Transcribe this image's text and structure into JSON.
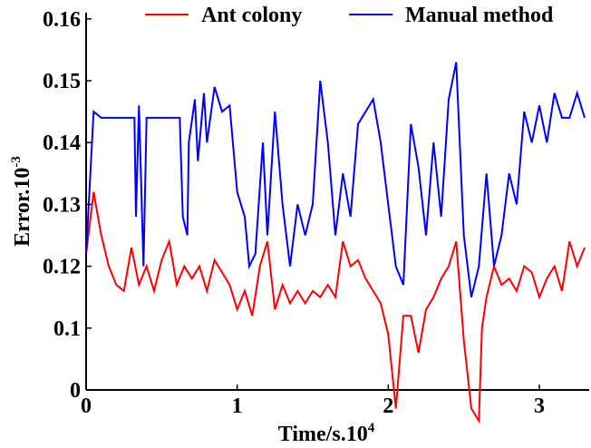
{
  "chart_data": {
    "type": "line",
    "xlabel": {
      "text": "Time/s.10",
      "sup": "4"
    },
    "ylabel": {
      "text": "Error.10",
      "sup": "-3"
    },
    "xlim": [
      0,
      3.33
    ],
    "ylim": [
      0.1,
      0.161
    ],
    "xticks": [
      0,
      1,
      2,
      3
    ],
    "yticks": [
      {
        "value": 0.1,
        "label": "0"
      },
      {
        "value": 0.11,
        "label": "0.1"
      },
      0.12,
      0.13,
      0.14,
      0.15,
      0.16
    ],
    "legend": "top",
    "series": [
      {
        "name": "Ant colony",
        "color": "#ff0000",
        "x": [
          0,
          0.05,
          0.1,
          0.15,
          0.2,
          0.25,
          0.3,
          0.35,
          0.4,
          0.45,
          0.5,
          0.55,
          0.6,
          0.65,
          0.7,
          0.75,
          0.8,
          0.85,
          0.9,
          0.95,
          1.0,
          1.05,
          1.1,
          1.15,
          1.2,
          1.25,
          1.3,
          1.35,
          1.4,
          1.45,
          1.5,
          1.55,
          1.6,
          1.65,
          1.7,
          1.75,
          1.8,
          1.85,
          1.9,
          1.95,
          2.0,
          2.05,
          2.1,
          2.15,
          2.2,
          2.25,
          2.3,
          2.35,
          2.4,
          2.45,
          2.5,
          2.55,
          2.6,
          2.62,
          2.65,
          2.7,
          2.75,
          2.8,
          2.85,
          2.9,
          2.95,
          3.0,
          3.05,
          3.1,
          3.15,
          3.2,
          3.25,
          3.3
        ],
        "values": [
          0.122,
          0.132,
          0.125,
          0.12,
          0.117,
          0.116,
          0.123,
          0.117,
          0.12,
          0.116,
          0.121,
          0.124,
          0.117,
          0.12,
          0.118,
          0.12,
          0.116,
          0.121,
          0.119,
          0.117,
          0.113,
          0.116,
          0.112,
          0.12,
          0.124,
          0.113,
          0.117,
          0.114,
          0.116,
          0.114,
          0.116,
          0.115,
          0.117,
          0.115,
          0.124,
          0.12,
          0.121,
          0.118,
          0.116,
          0.114,
          0.109,
          0.097,
          0.112,
          0.112,
          0.106,
          0.113,
          0.115,
          0.118,
          0.12,
          0.124,
          0.108,
          0.097,
          0.095,
          0.11,
          0.115,
          0.12,
          0.117,
          0.118,
          0.116,
          0.12,
          0.119,
          0.115,
          0.118,
          0.12,
          0.116,
          0.124,
          0.12,
          0.123
        ]
      },
      {
        "name": "Manual method",
        "color": "#0000ff",
        "x": [
          0,
          0.05,
          0.1,
          0.32,
          0.33,
          0.35,
          0.38,
          0.4,
          0.62,
          0.64,
          0.67,
          0.68,
          0.72,
          0.74,
          0.78,
          0.8,
          0.85,
          0.9,
          0.95,
          1.0,
          1.05,
          1.08,
          1.12,
          1.17,
          1.2,
          1.25,
          1.3,
          1.35,
          1.4,
          1.45,
          1.5,
          1.55,
          1.6,
          1.65,
          1.7,
          1.75,
          1.8,
          1.9,
          1.95,
          2.0,
          2.05,
          2.1,
          2.15,
          2.2,
          2.25,
          2.3,
          2.35,
          2.4,
          2.45,
          2.5,
          2.55,
          2.6,
          2.65,
          2.7,
          2.75,
          2.8,
          2.85,
          2.9,
          2.95,
          3.0,
          3.05,
          3.1,
          3.15,
          3.2,
          3.25,
          3.3
        ],
        "values": [
          0.122,
          0.145,
          0.144,
          0.144,
          0.128,
          0.146,
          0.12,
          0.144,
          0.144,
          0.128,
          0.125,
          0.14,
          0.147,
          0.137,
          0.148,
          0.14,
          0.149,
          0.145,
          0.146,
          0.132,
          0.128,
          0.12,
          0.122,
          0.14,
          0.125,
          0.145,
          0.13,
          0.12,
          0.13,
          0.125,
          0.13,
          0.15,
          0.14,
          0.125,
          0.135,
          0.128,
          0.143,
          0.147,
          0.14,
          0.13,
          0.12,
          0.117,
          0.143,
          0.136,
          0.125,
          0.14,
          0.128,
          0.147,
          0.153,
          0.125,
          0.115,
          0.12,
          0.135,
          0.12,
          0.125,
          0.135,
          0.13,
          0.145,
          0.14,
          0.146,
          0.14,
          0.148,
          0.144,
          0.144,
          0.148,
          0.144
        ]
      }
    ]
  }
}
